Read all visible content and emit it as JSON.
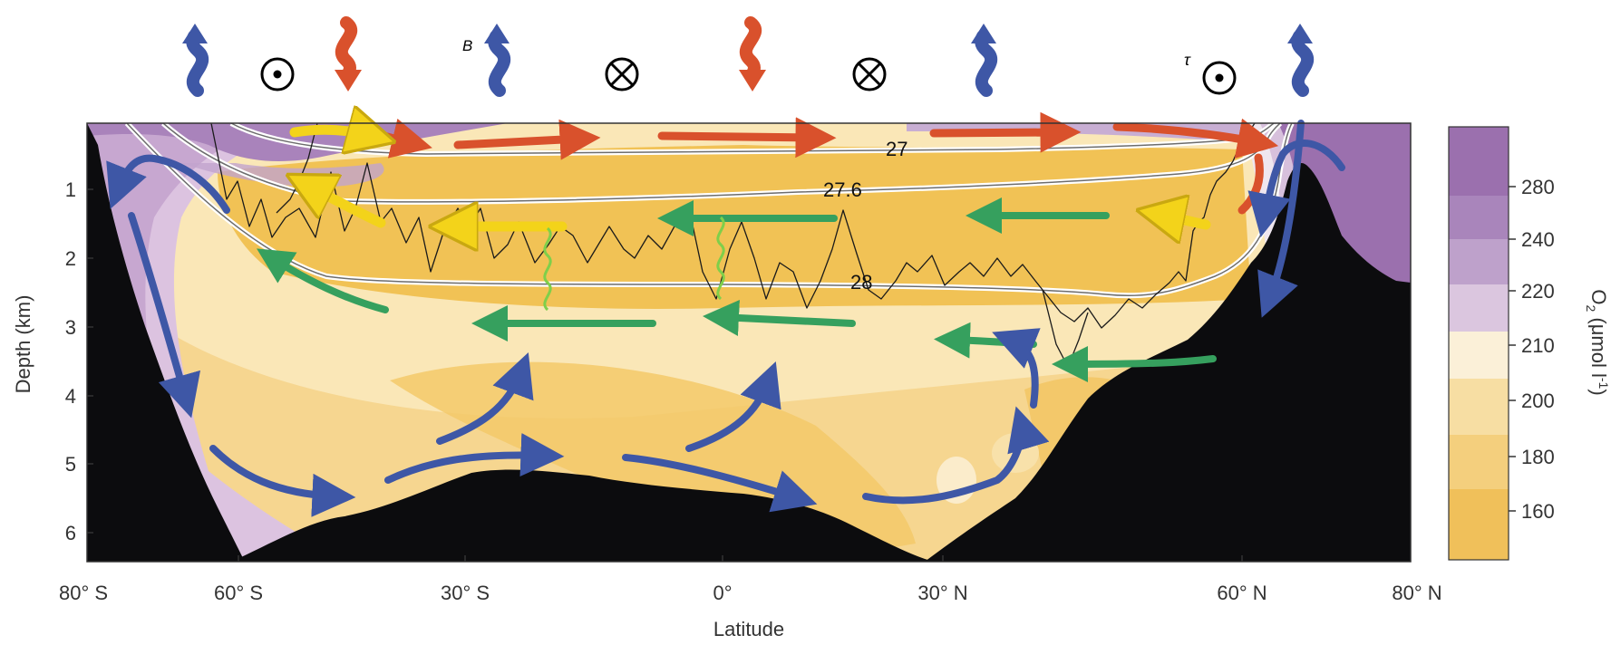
{
  "top_symbols": [
    {
      "type": "up-arrow",
      "label": ""
    },
    {
      "type": "circle-dot",
      "label": ""
    },
    {
      "type": "down-arrow",
      "label": ""
    },
    {
      "type": "up-arrow",
      "label": "B"
    },
    {
      "type": "circle-cross",
      "label": ""
    },
    {
      "type": "down-arrow",
      "label": ""
    },
    {
      "type": "circle-cross",
      "label": ""
    },
    {
      "type": "up-arrow",
      "label": ""
    },
    {
      "type": "circle-dot",
      "label": "τ"
    },
    {
      "type": "up-arrow",
      "label": ""
    }
  ],
  "axes": {
    "y_label": "Depth (km)",
    "y_ticks": [
      "1",
      "2",
      "3",
      "4",
      "5",
      "6"
    ],
    "x_label": "Latitude",
    "x_ticks": [
      "80° S",
      "60° S",
      "30° S",
      "0°",
      "30° N",
      "60° N",
      "80° N"
    ]
  },
  "isopycnals": [
    "27",
    "27.6",
    "28"
  ],
  "colorbar": {
    "title": "O",
    "title_sub": "2",
    "unit": "(μmol l",
    "unit_sup": "-1",
    "unit_end": ")",
    "ticks": [
      "280",
      "240",
      "220",
      "210",
      "200",
      "180",
      "160"
    ]
  },
  "colors": {
    "blue_arrow": "#3e57a6",
    "red_arrow": "#d9512c",
    "yellow_arrow": "#f3d31a",
    "green_arrow": "#36a05e",
    "topography": "#0c0c0e",
    "o2_high": "#9b70ae",
    "o2_low": "#f0c15c"
  }
}
